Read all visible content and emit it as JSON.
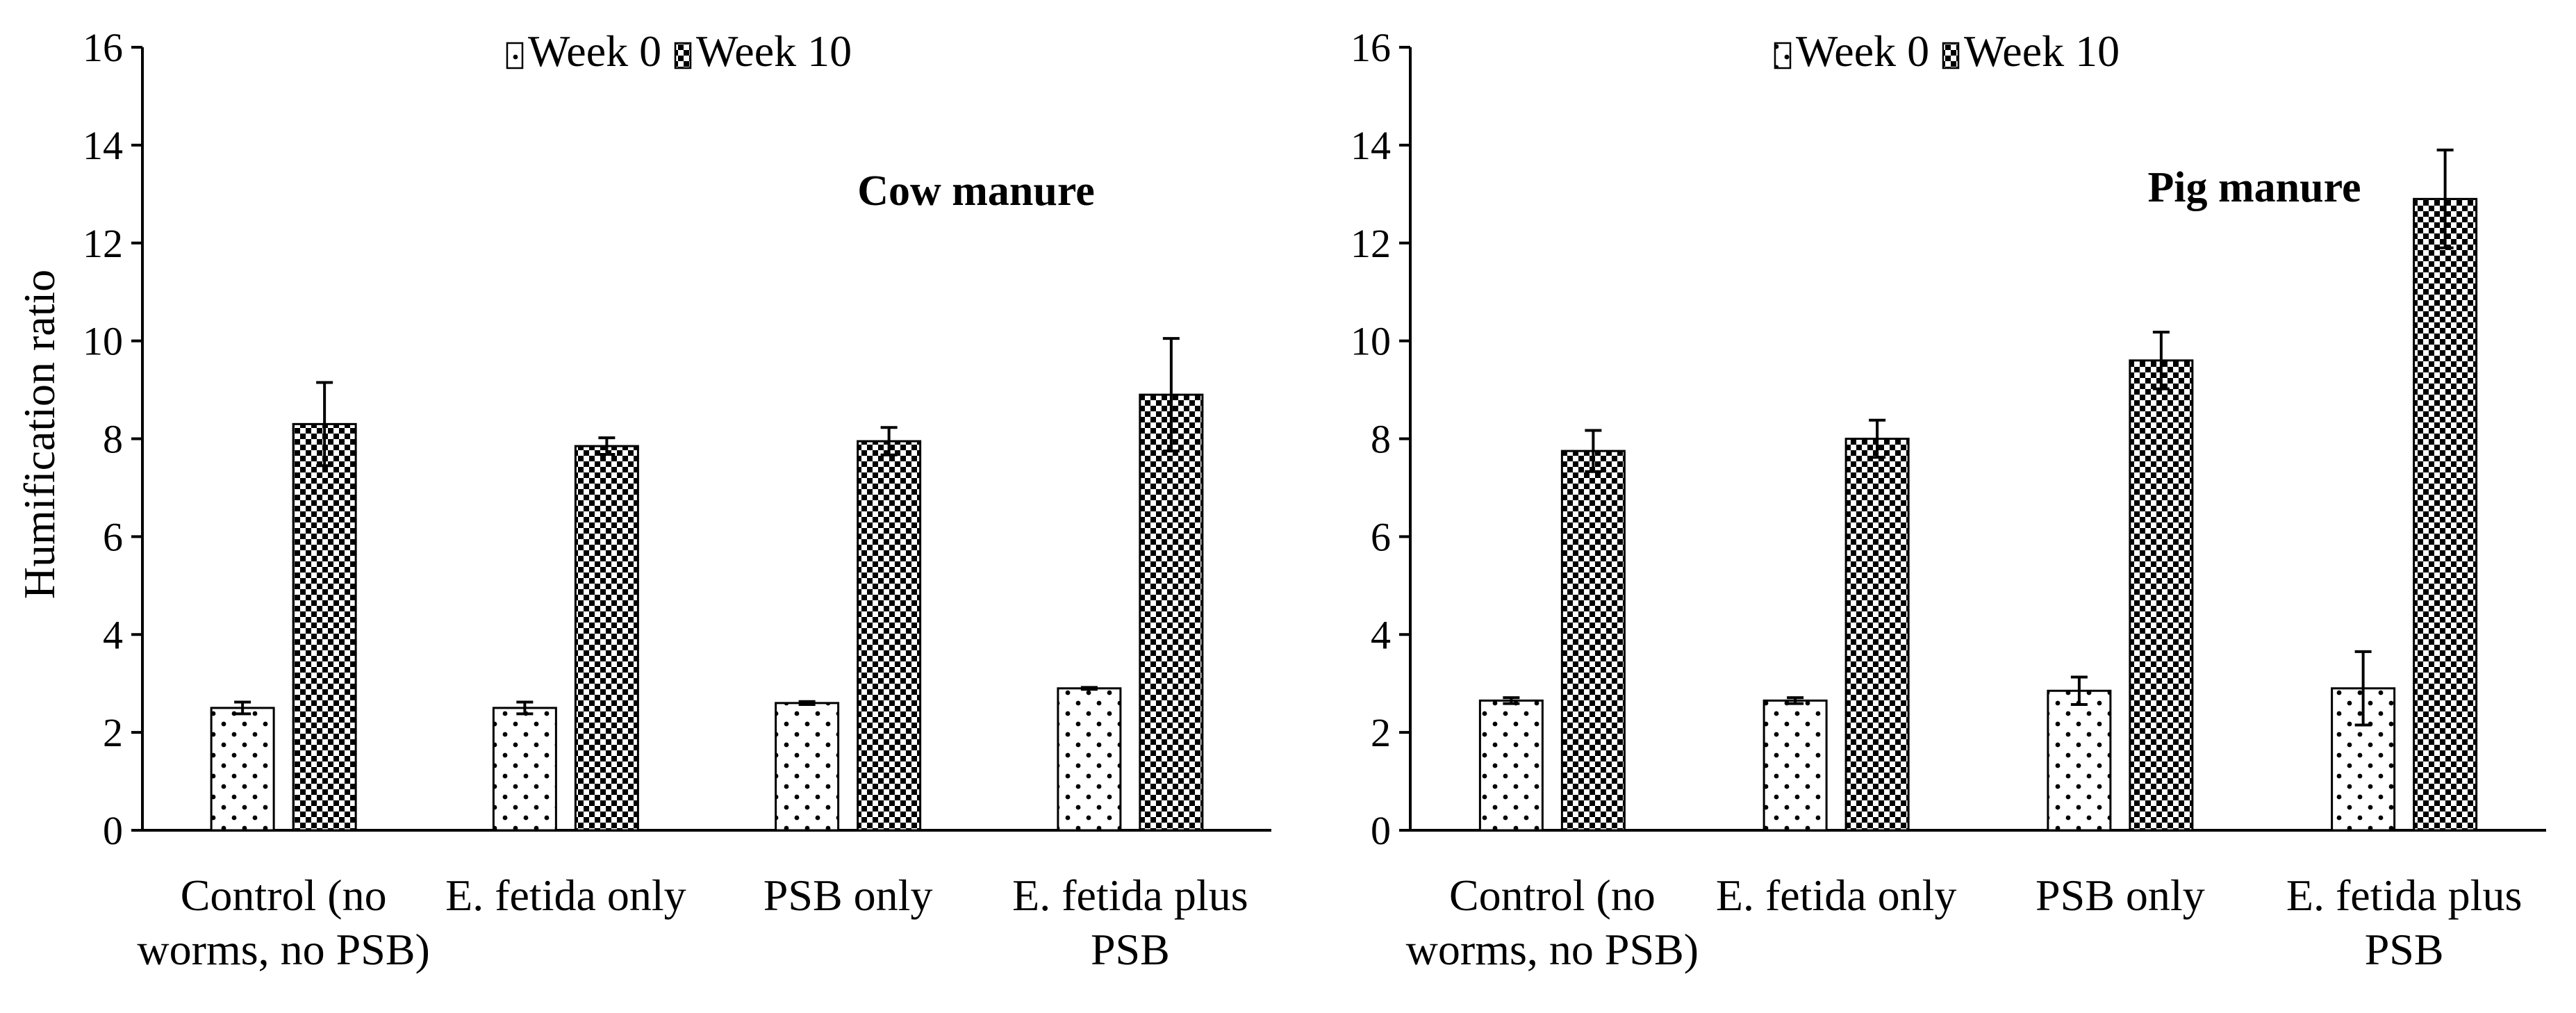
{
  "figure": {
    "y_axis_label": "Humification ratio"
  },
  "chart_data": [
    {
      "type": "bar",
      "title": "Cow manure",
      "xlabel": "",
      "ylabel": "Humification ratio",
      "ylim": [
        0,
        16
      ],
      "yticks": [
        "0",
        "2",
        "4",
        "6",
        "8",
        "10",
        "12",
        "14",
        "16"
      ],
      "grid": false,
      "legend_position": "top-center",
      "categories": [
        [
          "Control (no",
          "worms, no PSB)"
        ],
        [
          "E. fetida only"
        ],
        [
          "PSB only"
        ],
        [
          "E. fetida plus",
          "PSB"
        ]
      ],
      "series": [
        {
          "name": "Week 0",
          "pattern": "sparse-dots",
          "values": [
            2.5,
            2.5,
            2.6,
            2.9
          ],
          "errors": [
            0.12,
            0.12,
            0.03,
            0.02
          ]
        },
        {
          "name": "Week 10",
          "pattern": "dense-check",
          "values": [
            8.3,
            7.85,
            7.95,
            8.9
          ],
          "errors": [
            0.85,
            0.17,
            0.28,
            1.15
          ]
        }
      ]
    },
    {
      "type": "bar",
      "title": "Pig manure",
      "xlabel": "",
      "ylabel": "",
      "ylim": [
        0,
        16
      ],
      "yticks": [
        "0",
        "2",
        "4",
        "6",
        "8",
        "10",
        "12",
        "14",
        "16"
      ],
      "grid": false,
      "legend_position": "top-center",
      "categories": [
        [
          "Control (no",
          "worms, no PSB)"
        ],
        [
          "E. fetida only"
        ],
        [
          "PSB only"
        ],
        [
          "E. fetida plus",
          "PSB"
        ]
      ],
      "series": [
        {
          "name": "Week 0",
          "pattern": "sparse-dots",
          "values": [
            2.65,
            2.65,
            2.85,
            2.9
          ],
          "errors": [
            0.06,
            0.06,
            0.28,
            0.75
          ]
        },
        {
          "name": "Week 10",
          "pattern": "dense-check",
          "values": [
            7.75,
            8.0,
            9.6,
            12.9
          ],
          "errors": [
            0.42,
            0.38,
            0.58,
            1.0
          ]
        }
      ]
    }
  ]
}
